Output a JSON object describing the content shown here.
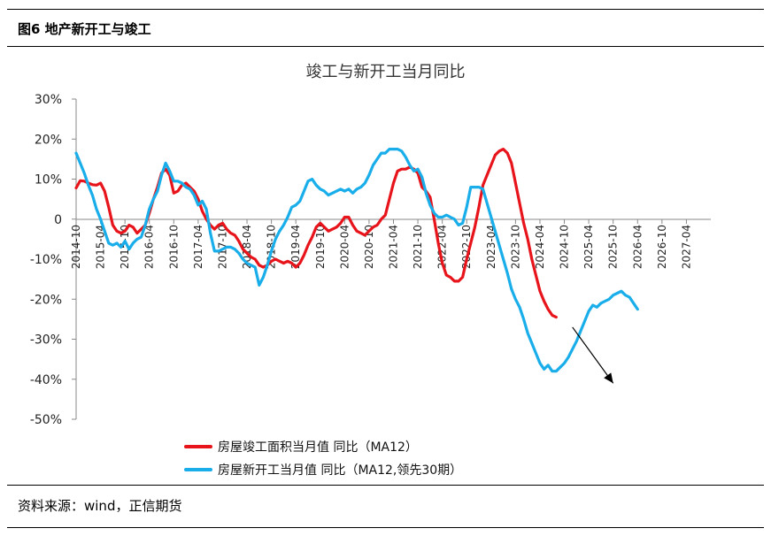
{
  "figure": {
    "label": "图6  地产新开工与竣工",
    "source": "资料来源：wind，正信期货"
  },
  "colors": {
    "completion": "#e8141b",
    "new_starts": "#19aeea",
    "arrow": "#000000"
  },
  "chart_data": {
    "type": "line",
    "title": "竣工与新开工当月同比",
    "xlabel": "",
    "ylabel": "",
    "ylim": [
      -50,
      30
    ],
    "y_ticks": [
      "30%",
      "20%",
      "10%",
      "0",
      "-10%",
      "-20%",
      "-30%",
      "-40%",
      "-50%"
    ],
    "y_tick_values": [
      30,
      20,
      10,
      0,
      -10,
      -20,
      -30,
      -40,
      -50
    ],
    "x_range": [
      "2014-10",
      "2027-10"
    ],
    "x_ticks": [
      "2014-10",
      "2015-04",
      "2015-10",
      "2016-04",
      "2016-10",
      "2017-04",
      "2017-10",
      "2018-04",
      "2018-10",
      "2019-04",
      "2019-10",
      "2020-04",
      "2020-10",
      "2021-04",
      "2021-10",
      "2022-04",
      "2022-10",
      "2023-04",
      "2023-10",
      "2024-04",
      "2024-10",
      "2025-04",
      "2025-10",
      "2026-04",
      "2026-10",
      "2027-04"
    ],
    "legend_position": "bottom-left",
    "annotation": {
      "type": "arrow",
      "from": [
        "2024-12",
        -27
      ],
      "to": [
        "2025-10",
        -41
      ]
    },
    "series": [
      {
        "name": "房屋竣工面积当月值  同比（MA12）",
        "color": "#e8141b",
        "points": [
          [
            "2014-10",
            7.8
          ],
          [
            "2014-11",
            9.6
          ],
          [
            "2014-12",
            9.5
          ],
          [
            "2015-01",
            9.0
          ],
          [
            "2015-02",
            8.6
          ],
          [
            "2015-03",
            8.5
          ],
          [
            "2015-04",
            9.0
          ],
          [
            "2015-05",
            7.0
          ],
          [
            "2015-06",
            3.0
          ],
          [
            "2015-07",
            -1.5
          ],
          [
            "2015-08",
            -3.0
          ],
          [
            "2015-09",
            -3.5
          ],
          [
            "2015-10",
            -3.0
          ],
          [
            "2015-11",
            -1.5
          ],
          [
            "2015-12",
            -2.0
          ],
          [
            "2016-01",
            -3.5
          ],
          [
            "2016-02",
            -2.5
          ],
          [
            "2016-03",
            -1.5
          ],
          [
            "2016-04",
            1.5
          ],
          [
            "2016-05",
            5.0
          ],
          [
            "2016-06",
            8.0
          ],
          [
            "2016-07",
            11.5
          ],
          [
            "2016-08",
            12.5
          ],
          [
            "2016-09",
            11.0
          ],
          [
            "2016-10",
            6.5
          ],
          [
            "2016-11",
            7.0
          ],
          [
            "2016-12",
            8.5
          ],
          [
            "2017-01",
            9.0
          ],
          [
            "2017-02",
            8.0
          ],
          [
            "2017-03",
            7.0
          ],
          [
            "2017-04",
            5.0
          ],
          [
            "2017-05",
            2.0
          ],
          [
            "2017-06",
            0.0
          ],
          [
            "2017-07",
            -1.5
          ],
          [
            "2017-08",
            -2.5
          ],
          [
            "2017-09",
            -1.5
          ],
          [
            "2017-10",
            -1.0
          ],
          [
            "2017-11",
            -2.5
          ],
          [
            "2017-12",
            -3.5
          ],
          [
            "2018-01",
            -4.0
          ],
          [
            "2018-02",
            -5.5
          ],
          [
            "2018-03",
            -7.5
          ],
          [
            "2018-04",
            -8.5
          ],
          [
            "2018-05",
            -9.5
          ],
          [
            "2018-06",
            -10.0
          ],
          [
            "2018-07",
            -11.5
          ],
          [
            "2018-08",
            -12.0
          ],
          [
            "2018-09",
            -11.5
          ],
          [
            "2018-10",
            -10.5
          ],
          [
            "2018-11",
            -10.0
          ],
          [
            "2018-12",
            -10.5
          ],
          [
            "2019-01",
            -11.0
          ],
          [
            "2019-02",
            -10.5
          ],
          [
            "2019-03",
            -11.0
          ],
          [
            "2019-04",
            -12.0
          ],
          [
            "2019-05",
            -11.0
          ],
          [
            "2019-06",
            -9.0
          ],
          [
            "2019-07",
            -6.5
          ],
          [
            "2019-08",
            -4.5
          ],
          [
            "2019-09",
            -2.0
          ],
          [
            "2019-10",
            -1.0
          ],
          [
            "2019-11",
            -2.0
          ],
          [
            "2019-12",
            -3.0
          ],
          [
            "2020-01",
            -2.5
          ],
          [
            "2020-02",
            -2.0
          ],
          [
            "2020-03",
            -1.0
          ],
          [
            "2020-04",
            0.5
          ],
          [
            "2020-05",
            0.5
          ],
          [
            "2020-06",
            -1.5
          ],
          [
            "2020-07",
            -3.0
          ],
          [
            "2020-08",
            -3.5
          ],
          [
            "2020-09",
            -4.0
          ],
          [
            "2020-10",
            -3.0
          ],
          [
            "2020-11",
            -2.0
          ],
          [
            "2020-12",
            -1.5
          ],
          [
            "2021-01",
            0.0
          ],
          [
            "2021-02",
            1.0
          ],
          [
            "2021-03",
            5.0
          ],
          [
            "2021-04",
            9.0
          ],
          [
            "2021-05",
            12.0
          ],
          [
            "2021-06",
            12.5
          ],
          [
            "2021-07",
            12.5
          ],
          [
            "2021-08",
            13.0
          ],
          [
            "2021-09",
            12.5
          ],
          [
            "2021-10",
            11.5
          ],
          [
            "2021-11",
            8.0
          ],
          [
            "2021-12",
            7.0
          ],
          [
            "2022-01",
            5.5
          ],
          [
            "2022-02",
            0.0
          ],
          [
            "2022-03",
            -6.0
          ],
          [
            "2022-04",
            -11.0
          ],
          [
            "2022-05",
            -14.0
          ],
          [
            "2022-06",
            -14.5
          ],
          [
            "2022-07",
            -15.5
          ],
          [
            "2022-08",
            -15.5
          ],
          [
            "2022-09",
            -14.5
          ],
          [
            "2022-10",
            -10.0
          ],
          [
            "2022-11",
            -6.0
          ],
          [
            "2022-12",
            -2.0
          ],
          [
            "2023-01",
            3.0
          ],
          [
            "2023-02",
            8.5
          ],
          [
            "2023-03",
            11.0
          ],
          [
            "2023-04",
            13.5
          ],
          [
            "2023-05",
            16.0
          ],
          [
            "2023-06",
            17.0
          ],
          [
            "2023-07",
            17.5
          ],
          [
            "2023-08",
            16.5
          ],
          [
            "2023-09",
            14.0
          ],
          [
            "2023-10",
            9.0
          ],
          [
            "2023-11",
            4.0
          ],
          [
            "2023-12",
            -1.0
          ],
          [
            "2024-01",
            -5.0
          ],
          [
            "2024-02",
            -10.0
          ],
          [
            "2024-03",
            -14.0
          ],
          [
            "2024-04",
            -18.0
          ],
          [
            "2024-05",
            -20.5
          ],
          [
            "2024-06",
            -22.5
          ],
          [
            "2024-07",
            -24.0
          ],
          [
            "2024-08",
            -24.5
          ]
        ]
      },
      {
        "name": "房屋新开工当月值  同比（MA12,领先30期）",
        "color": "#19aeea",
        "points": [
          [
            "2014-10",
            16.5
          ],
          [
            "2014-11",
            14.0
          ],
          [
            "2014-12",
            11.5
          ],
          [
            "2015-01",
            8.5
          ],
          [
            "2015-02",
            6.0
          ],
          [
            "2015-03",
            2.5
          ],
          [
            "2015-04",
            0.0
          ],
          [
            "2015-05",
            -3.0
          ],
          [
            "2015-06",
            -6.0
          ],
          [
            "2015-07",
            -6.5
          ],
          [
            "2015-08",
            -6.0
          ],
          [
            "2015-09",
            -7.0
          ],
          [
            "2015-10",
            -5.5
          ],
          [
            "2015-11",
            -7.5
          ],
          [
            "2015-12",
            -6.0
          ],
          [
            "2016-01",
            -5.0
          ],
          [
            "2016-02",
            -4.5
          ],
          [
            "2016-03",
            -1.5
          ],
          [
            "2016-04",
            2.5
          ],
          [
            "2016-05",
            5.0
          ],
          [
            "2016-06",
            7.0
          ],
          [
            "2016-07",
            11.0
          ],
          [
            "2016-08",
            14.0
          ],
          [
            "2016-09",
            12.0
          ],
          [
            "2016-10",
            9.5
          ],
          [
            "2016-11",
            9.5
          ],
          [
            "2016-12",
            9.0
          ],
          [
            "2017-01",
            8.0
          ],
          [
            "2017-02",
            7.5
          ],
          [
            "2017-03",
            6.0
          ],
          [
            "2017-04",
            3.5
          ],
          [
            "2017-05",
            4.5
          ],
          [
            "2017-06",
            2.5
          ],
          [
            "2017-07",
            -3.5
          ],
          [
            "2017-08",
            -8.0
          ],
          [
            "2017-09",
            -8.0
          ],
          [
            "2017-10",
            -7.5
          ],
          [
            "2017-11",
            -7.0
          ],
          [
            "2017-12",
            -7.0
          ],
          [
            "2018-01",
            -7.5
          ],
          [
            "2018-02",
            -8.5
          ],
          [
            "2018-03",
            -10.0
          ],
          [
            "2018-04",
            -11.0
          ],
          [
            "2018-05",
            -11.5
          ],
          [
            "2018-06",
            -12.0
          ],
          [
            "2018-07",
            -16.5
          ],
          [
            "2018-08",
            -14.5
          ],
          [
            "2018-09",
            -11.5
          ],
          [
            "2018-10",
            -8.0
          ],
          [
            "2018-11",
            -5.0
          ],
          [
            "2018-12",
            -3.0
          ],
          [
            "2019-01",
            -1.5
          ],
          [
            "2019-02",
            0.5
          ],
          [
            "2019-03",
            3.0
          ],
          [
            "2019-04",
            3.5
          ],
          [
            "2019-05",
            4.5
          ],
          [
            "2019-06",
            7.0
          ],
          [
            "2019-07",
            9.5
          ],
          [
            "2019-08",
            10.0
          ],
          [
            "2019-09",
            8.5
          ],
          [
            "2019-10",
            7.5
          ],
          [
            "2019-11",
            7.0
          ],
          [
            "2019-12",
            6.0
          ],
          [
            "2020-01",
            6.5
          ],
          [
            "2020-02",
            7.0
          ],
          [
            "2020-03",
            7.5
          ],
          [
            "2020-04",
            7.0
          ],
          [
            "2020-05",
            7.5
          ],
          [
            "2020-06",
            6.5
          ],
          [
            "2020-07",
            7.5
          ],
          [
            "2020-08",
            8.0
          ],
          [
            "2020-09",
            9.0
          ],
          [
            "2020-10",
            11.0
          ],
          [
            "2020-11",
            13.5
          ],
          [
            "2020-12",
            15.0
          ],
          [
            "2021-01",
            16.5
          ],
          [
            "2021-02",
            16.5
          ],
          [
            "2021-03",
            17.5
          ],
          [
            "2021-04",
            17.5
          ],
          [
            "2021-05",
            17.5
          ],
          [
            "2021-06",
            17.0
          ],
          [
            "2021-07",
            15.5
          ],
          [
            "2021-08",
            13.5
          ],
          [
            "2021-09",
            12.0
          ],
          [
            "2021-10",
            12.5
          ],
          [
            "2021-11",
            10.5
          ],
          [
            "2021-12",
            6.5
          ],
          [
            "2022-01",
            3.5
          ],
          [
            "2022-02",
            1.5
          ],
          [
            "2022-03",
            0.5
          ],
          [
            "2022-04",
            0.5
          ],
          [
            "2022-05",
            1.0
          ],
          [
            "2022-06",
            0.5
          ],
          [
            "2022-07",
            0.0
          ],
          [
            "2022-08",
            -1.5
          ],
          [
            "2022-09",
            -1.0
          ],
          [
            "2022-10",
            3.0
          ],
          [
            "2022-11",
            8.0
          ],
          [
            "2022-12",
            8.0
          ],
          [
            "2023-01",
            8.0
          ],
          [
            "2023-02",
            7.5
          ],
          [
            "2023-03",
            4.0
          ],
          [
            "2023-04",
            0.5
          ],
          [
            "2023-05",
            -3.0
          ],
          [
            "2023-06",
            -6.5
          ],
          [
            "2023-07",
            -10.0
          ],
          [
            "2023-08",
            -13.5
          ],
          [
            "2023-09",
            -17.5
          ],
          [
            "2023-10",
            -20.0
          ],
          [
            "2023-11",
            -22.0
          ],
          [
            "2023-12",
            -25.0
          ],
          [
            "2024-01",
            -28.5
          ],
          [
            "2024-02",
            -31.0
          ],
          [
            "2024-03",
            -33.5
          ],
          [
            "2024-04",
            -36.0
          ],
          [
            "2024-05",
            -37.5
          ],
          [
            "2024-06",
            -36.5
          ],
          [
            "2024-07",
            -38.0
          ],
          [
            "2024-08",
            -38.0
          ],
          [
            "2024-09",
            -37.0
          ],
          [
            "2024-10",
            -36.0
          ],
          [
            "2024-11",
            -34.5
          ],
          [
            "2024-12",
            -32.5
          ],
          [
            "2025-01",
            -30.5
          ],
          [
            "2025-02",
            -28.0
          ],
          [
            "2025-03",
            -25.5
          ],
          [
            "2025-04",
            -23.0
          ],
          [
            "2025-05",
            -21.5
          ],
          [
            "2025-06",
            -22.0
          ],
          [
            "2025-07",
            -21.0
          ],
          [
            "2025-08",
            -20.5
          ],
          [
            "2025-09",
            -20.0
          ],
          [
            "2025-10",
            -19.0
          ],
          [
            "2025-11",
            -18.5
          ],
          [
            "2025-12",
            -18.0
          ],
          [
            "2026-01",
            -19.0
          ],
          [
            "2026-02",
            -19.5
          ],
          [
            "2026-03",
            -21.0
          ],
          [
            "2026-04",
            -22.5
          ]
        ]
      }
    ]
  }
}
